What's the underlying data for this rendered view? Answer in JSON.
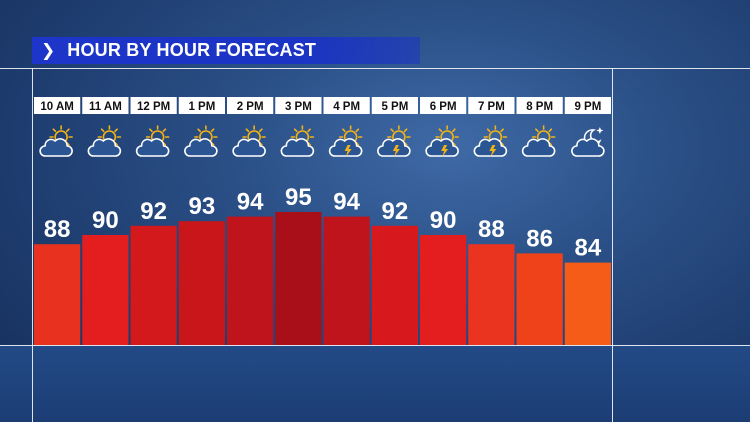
{
  "title": "HOUR BY HOUR FORECAST",
  "chevron_icon": "chevron-right-icon",
  "chart_data": {
    "type": "bar",
    "title": "HOUR BY HOUR FORECAST",
    "categories": [
      "10 AM",
      "11 AM",
      "12 PM",
      "1 PM",
      "2 PM",
      "3 PM",
      "4 PM",
      "5 PM",
      "6 PM",
      "7 PM",
      "8 PM",
      "9 PM"
    ],
    "values": [
      88,
      90,
      92,
      93,
      94,
      95,
      94,
      92,
      90,
      88,
      86,
      84
    ],
    "icons": [
      "partly-sunny-icon",
      "partly-sunny-icon",
      "partly-sunny-icon",
      "partly-sunny-icon",
      "partly-sunny-icon",
      "partly-sunny-icon",
      "sun-thunderstorm-icon",
      "sun-thunderstorm-icon",
      "sun-thunderstorm-icon",
      "sun-thunderstorm-icon",
      "partly-sunny-icon",
      "partly-cloudy-night-icon"
    ],
    "colors": [
      "#e8321f",
      "#e41e1e",
      "#d3191c",
      "#c9161b",
      "#bf141b",
      "#a80f18",
      "#c0141c",
      "#d7181c",
      "#e41e1e",
      "#ea3420",
      "#f0421a",
      "#f45c18"
    ],
    "xlabel": "",
    "ylabel": "",
    "ylim": [
      70,
      100
    ],
    "grid": true,
    "legend": "none"
  }
}
